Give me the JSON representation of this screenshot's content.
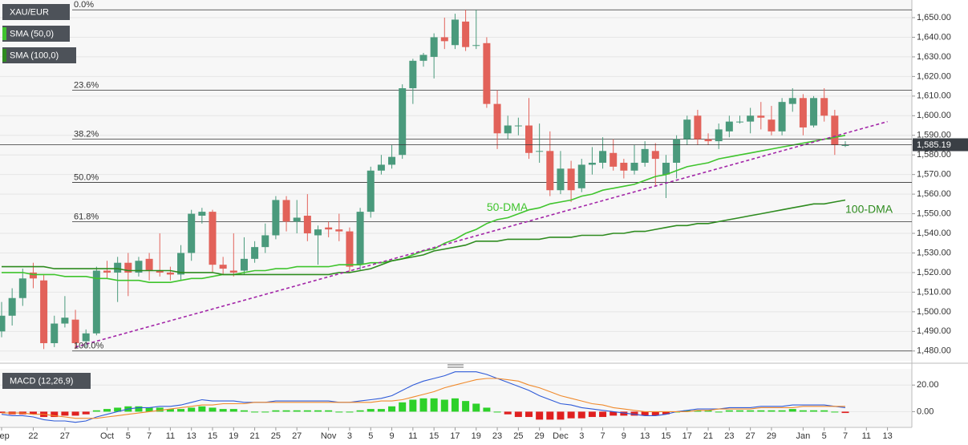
{
  "chart_data": {
    "type": "candlestick",
    "legend": [
      "XAU/EUR",
      "SMA (50,0)",
      "SMA (100,0)"
    ],
    "categories": [
      "Sep",
      null,
      null,
      "22",
      null,
      null,
      "27",
      null,
      null,
      null,
      "Oct",
      null,
      "5",
      null,
      "7",
      null,
      "11",
      null,
      "13",
      null,
      "15",
      null,
      "19",
      null,
      "21",
      null,
      "25",
      null,
      "27",
      null,
      null,
      "Nov",
      null,
      "3",
      null,
      "5",
      null,
      "9",
      null,
      "11",
      null,
      "15",
      null,
      "17",
      null,
      "19",
      null,
      "23",
      null,
      "25",
      null,
      "29",
      null,
      "Dec",
      null,
      "3",
      null,
      "7",
      null,
      "9",
      null,
      "13",
      null,
      "15",
      null,
      "17",
      null,
      "21",
      null,
      "23",
      null,
      "27",
      null,
      "29",
      null,
      null,
      "Jan",
      null,
      "5",
      null,
      "7",
      null,
      "11",
      null,
      "13",
      null
    ],
    "open": [
      1490,
      1498,
      1507,
      1520,
      1516,
      1484,
      1494,
      1496,
      1485,
      1489,
      1521,
      1520,
      1525,
      1520,
      1527,
      1521,
      1520,
      1519,
      1530,
      1549,
      1551,
      1524,
      1521,
      1521,
      1527,
      1533,
      1539,
      1557,
      1546,
      1549,
      1539,
      1543,
      1542,
      1541,
      1524,
      1551,
      1572,
      1575,
      1580,
      1614,
      1628,
      1630,
      1640,
      1636,
      1648,
      1636,
      1637,
      1606,
      1591,
      1595,
      1595,
      1582,
      1582,
      1562,
      1573,
      1563,
      1575,
      1576,
      1581,
      1576,
      1572,
      1576,
      1582,
      1570,
      1576,
      1588,
      1600,
      1588,
      1587,
      1592,
      1597,
      1597,
      1600,
      1598,
      1592,
      1606,
      1609,
      1595,
      1609,
      1600,
      1585,
      null,
      null,
      null,
      null,
      null
    ],
    "close": [
      1498,
      1507,
      1517,
      1517,
      1484,
      1494,
      1497,
      1484,
      1489,
      1521,
      1520,
      1525,
      1520,
      1526,
      1521,
      1520,
      1519,
      1530,
      1550,
      1551,
      1524,
      1522,
      1520,
      1527,
      1533,
      1539,
      1557,
      1546,
      1548,
      1540,
      1542,
      1542,
      1541,
      1523,
      1551,
      1572,
      1575,
      1579,
      1614,
      1628,
      1631,
      1640,
      1638,
      1649,
      1635,
      1636,
      1606,
      1591,
      1595,
      1595,
      1581,
      1582,
      1562,
      1573,
      1562,
      1575,
      1576,
      1582,
      1574,
      1572,
      1576,
      1583,
      1578,
      1576,
      1588,
      1598,
      1588,
      1587,
      1593,
      1597,
      1597,
      1600,
      1599,
      1592,
      1607,
      1609,
      1594,
      1609,
      1600,
      1585,
      1585,
      null,
      null,
      null,
      null,
      null
    ],
    "high": [
      1505,
      1512,
      1522,
      1525,
      1519,
      1498,
      1508,
      1501,
      1491,
      1523,
      1526,
      1528,
      1530,
      1528,
      1530,
      1540,
      1523,
      1534,
      1552,
      1553,
      1552,
      1528,
      1540,
      1538,
      1536,
      1545,
      1559,
      1559,
      1557,
      1560,
      1544,
      1546,
      1550,
      1543,
      1553,
      1574,
      1580,
      1585,
      1616,
      1629,
      1632,
      1642,
      1650,
      1652,
      1654,
      1654,
      1640,
      1613,
      1600,
      1599,
      1609,
      1596,
      1592,
      1582,
      1577,
      1578,
      1584,
      1589,
      1588,
      1578,
      1585,
      1587,
      1586,
      1580,
      1590,
      1600,
      1603,
      1591,
      1596,
      1600,
      1600,
      1604,
      1607,
      1605,
      1609,
      1614,
      1611,
      1610,
      1614,
      1603,
      1587,
      null,
      null,
      null,
      null,
      null
    ],
    "low": [
      1487,
      1493,
      1503,
      1512,
      1481,
      1482,
      1492,
      1481,
      1482,
      1488,
      1517,
      1505,
      1508,
      1518,
      1516,
      1518,
      1516,
      1516,
      1526,
      1545,
      1520,
      1519,
      1518,
      1519,
      1525,
      1530,
      1537,
      1541,
      1540,
      1536,
      1524,
      1538,
      1536,
      1520,
      1521,
      1548,
      1570,
      1573,
      1578,
      1606,
      1625,
      1619,
      1634,
      1634,
      1633,
      1634,
      1604,
      1583,
      1588,
      1590,
      1578,
      1576,
      1559,
      1560,
      1556,
      1561,
      1570,
      1573,
      1572,
      1568,
      1570,
      1574,
      1564,
      1558,
      1568,
      1585,
      1585,
      1585,
      1583,
      1589,
      1596,
      1591,
      1593,
      1590,
      1590,
      1602,
      1590,
      1594,
      1597,
      1580,
      1584,
      null,
      null,
      null,
      null,
      null
    ],
    "up_color": "#4a9a7c",
    "down_color": "#e2625a",
    "series": [
      {
        "name": "50-DMA",
        "color": "#3fc42d",
        "values": [
          1520,
          1520,
          1520,
          1519,
          1519,
          1519,
          1518,
          1518,
          1518,
          1517,
          1517,
          1516,
          1516,
          1516,
          1515,
          1515,
          1515,
          1516,
          1517,
          1517,
          1518,
          1519,
          1519,
          1520,
          1521,
          1521,
          1522,
          1522,
          1523,
          1523,
          1523,
          1523,
          1524,
          1524,
          1524,
          1525,
          1525,
          1526,
          1527,
          1529,
          1531,
          1532,
          1535,
          1537,
          1540,
          1542,
          1545,
          1547,
          1548,
          1550,
          1552,
          1553,
          1555,
          1556,
          1557,
          1559,
          1560,
          1562,
          1563,
          1564,
          1565,
          1567,
          1569,
          1570,
          1572,
          1574,
          1575,
          1576,
          1578,
          1579,
          1580,
          1581,
          1582,
          1583,
          1584,
          1585,
          1586,
          1587,
          1588,
          1589,
          1590,
          null,
          null,
          null,
          null,
          null
        ]
      },
      {
        "name": "100-DMA",
        "color": "#2e8b1f",
        "values": [
          1523,
          1523,
          1523,
          1523,
          1523,
          1522,
          1522,
          1522,
          1522,
          1522,
          1522,
          1522,
          1521,
          1521,
          1521,
          1521,
          1521,
          1520,
          1520,
          1520,
          1520,
          1519,
          1519,
          1519,
          1519,
          1519,
          1519,
          1519,
          1519,
          1519,
          1519,
          1519,
          1520,
          1520,
          1521,
          1522,
          1524,
          1526,
          1527,
          1528,
          1529,
          1531,
          1532,
          1533,
          1534,
          1536,
          1536,
          1536,
          1537,
          1537,
          1537,
          1537,
          1538,
          1538,
          1538,
          1539,
          1539,
          1539,
          1540,
          1540,
          1541,
          1541,
          1542,
          1543,
          1544,
          1544,
          1545,
          1545,
          1546,
          1547,
          1548,
          1549,
          1550,
          1551,
          1552,
          1553,
          1554,
          1555,
          1555,
          1556,
          1557,
          null,
          null,
          null,
          null,
          null
        ]
      }
    ],
    "trendline": {
      "color": "#a326a8",
      "x": [
        7,
        84
      ],
      "values": [
        1482,
        1597
      ]
    },
    "fib_levels": [
      {
        "label": "0.0%",
        "value": 1654
      },
      {
        "label": "23.6%",
        "value": 1613
      },
      {
        "label": "38.2%",
        "value": 1588
      },
      {
        "label": "50.0%",
        "value": 1566
      },
      {
        "label": "61.8%",
        "value": 1546
      },
      {
        "label": "100.0%",
        "value": 1480
      }
    ],
    "last_price": {
      "value": 1585.19,
      "label": "1,585.19"
    },
    "annotations": [
      {
        "text": "50-DMA",
        "color": "#3fc42d",
        "x": 46,
        "value": 1553
      },
      {
        "text": "100-DMA",
        "color": "#2e8b1f",
        "x": 80,
        "value": 1552
      }
    ],
    "ylim": [
      1475,
      1659
    ],
    "yticks": [
      {
        "value": 1480,
        "label": "1,480.00"
      },
      {
        "value": 1490,
        "label": "1,490.00"
      },
      {
        "value": 1500,
        "label": "1,500.00"
      },
      {
        "value": 1510,
        "label": "1,510.00"
      },
      {
        "value": 1520,
        "label": "1,520.00"
      },
      {
        "value": 1530,
        "label": "1,530.00"
      },
      {
        "value": 1540,
        "label": "1,540.00"
      },
      {
        "value": 1550,
        "label": "1,550.00"
      },
      {
        "value": 1560,
        "label": "1,560.00"
      },
      {
        "value": 1570,
        "label": "1,570.00"
      },
      {
        "value": 1580,
        "label": "1,580.00"
      },
      {
        "value": 1590,
        "label": "1,590.00"
      },
      {
        "value": 1600,
        "label": "1,600.00"
      },
      {
        "value": 1610,
        "label": "1,610.00"
      },
      {
        "value": 1620,
        "label": "1,620.00"
      },
      {
        "value": 1630,
        "label": "1,630.00"
      },
      {
        "value": 1640,
        "label": "1,640.00"
      },
      {
        "value": 1650,
        "label": "1,650.00"
      }
    ],
    "grid": true,
    "macd": {
      "label": "MACD (12,26,9)",
      "macd_color": "#2f5bd8",
      "signal_color": "#f08a2c",
      "up_color": "#2ed12a",
      "down_color": "#e02020",
      "macd": [
        -2,
        -3,
        -3,
        -4,
        -6,
        -7,
        -7,
        -8,
        -7,
        -4,
        -2,
        0,
        2,
        3,
        3,
        4,
        4,
        5,
        7,
        9,
        8,
        8,
        8,
        7,
        7,
        7,
        8,
        8,
        8,
        8,
        8,
        8,
        7,
        7,
        8,
        9,
        10,
        12,
        16,
        20,
        23,
        25,
        27,
        30,
        30,
        30,
        28,
        25,
        22,
        19,
        16,
        12,
        9,
        6,
        5,
        3,
        2,
        1,
        0,
        -1,
        -2,
        -3,
        -3,
        -2,
        0,
        1,
        2,
        2,
        2,
        3,
        3,
        3,
        4,
        4,
        4,
        5,
        5,
        5,
        5,
        4,
        3,
        null,
        null,
        null,
        null,
        null
      ],
      "signal": [
        -1,
        -1,
        -1,
        -2,
        -2,
        -3,
        -4,
        -5,
        -5,
        -5,
        -4,
        -3,
        -2,
        -1,
        0,
        1,
        2,
        3,
        4,
        5,
        5,
        6,
        6,
        6,
        7,
        7,
        7,
        7,
        7,
        7,
        7,
        7,
        7,
        7,
        7,
        7,
        8,
        8,
        9,
        11,
        13,
        15,
        18,
        20,
        22,
        24,
        25,
        25,
        24,
        23,
        20,
        18,
        15,
        12,
        10,
        8,
        6,
        5,
        3,
        2,
        1,
        0,
        0,
        0,
        0,
        0,
        1,
        1,
        2,
        2,
        2,
        2,
        3,
        3,
        3,
        3,
        4,
        4,
        4,
        4,
        4,
        null,
        null,
        null,
        null,
        null
      ],
      "histogram": [
        -1,
        -2,
        -2,
        -2,
        -4,
        -4,
        -3,
        -3,
        -2,
        1,
        2,
        3,
        4,
        4,
        3,
        3,
        2,
        2,
        3,
        4,
        3,
        2,
        2,
        1,
        0,
        0,
        1,
        1,
        1,
        1,
        1,
        1,
        0,
        0,
        1,
        2,
        2,
        4,
        7,
        9,
        10,
        10,
        9,
        10,
        8,
        6,
        3,
        0,
        -2,
        -4,
        -4,
        -6,
        -6,
        -6,
        -5,
        -5,
        -4,
        -4,
        -3,
        -3,
        -3,
        -3,
        -3,
        -2,
        0,
        1,
        1,
        1,
        0,
        1,
        1,
        1,
        1,
        1,
        1,
        2,
        1,
        1,
        1,
        0,
        -1,
        null,
        null,
        null,
        null,
        null
      ],
      "ylim": [
        -10,
        31
      ],
      "yticks": [
        {
          "value": 0,
          "label": "0.00"
        },
        {
          "value": 20,
          "label": "20.00"
        }
      ]
    }
  }
}
